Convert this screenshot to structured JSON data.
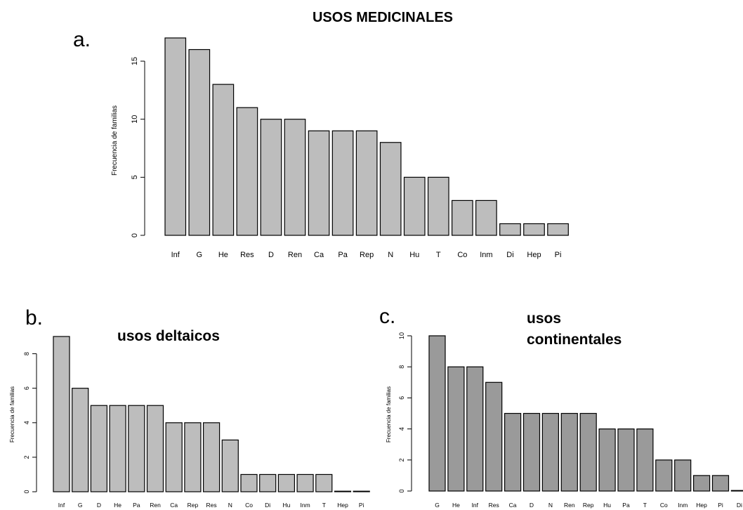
{
  "title": "USOS MEDICINALES",
  "chart_data": [
    {
      "panel": "a.",
      "type": "bar",
      "title": "",
      "ylabel": "Frecuencia de familias",
      "ylim": [
        0,
        17
      ],
      "yticks": [
        "0",
        "5",
        "10",
        "15"
      ],
      "bar_color": "#bdbdbd",
      "categories": [
        "Inf",
        "G",
        "He",
        "Res",
        "D",
        "Ren",
        "Ca",
        "Pa",
        "Rep",
        "N",
        "Hu",
        "T",
        "Co",
        "Inm",
        "Di",
        "Hep",
        "Pi"
      ],
      "values": [
        17,
        16,
        13,
        11,
        10,
        10,
        9,
        9,
        9,
        8,
        5,
        5,
        3,
        3,
        1,
        1,
        1
      ]
    },
    {
      "panel": "b.",
      "type": "bar",
      "title": "usos deltaicos",
      "ylabel": "Frecuencia de familias",
      "ylim": [
        0,
        9
      ],
      "yticks": [
        "0",
        "2",
        "4",
        "6",
        "8"
      ],
      "bar_color": "#bdbdbd",
      "categories": [
        "Inf",
        "G",
        "D",
        "He",
        "Pa",
        "Ren",
        "Ca",
        "Rep",
        "Res",
        "N",
        "Co",
        "Di",
        "Hu",
        "Inm",
        "T",
        "Hep",
        "Pi"
      ],
      "values": [
        9,
        6,
        5,
        5,
        5,
        5,
        4,
        4,
        4,
        3,
        1,
        1,
        1,
        1,
        1,
        0,
        0
      ]
    },
    {
      "panel": "c.",
      "type": "bar",
      "title": "usos continentales",
      "title_lines": [
        "usos",
        "continentales"
      ],
      "ylabel": "Frecuencia de familias",
      "ylim": [
        0,
        10
      ],
      "yticks": [
        "0",
        "2",
        "4",
        "6",
        "8",
        "10"
      ],
      "bar_color": "#9a9a9a",
      "categories": [
        "G",
        "He",
        "Inf",
        "Res",
        "Ca",
        "D",
        "N",
        "Ren",
        "Rep",
        "Hu",
        "Pa",
        "T",
        "Co",
        "Inm",
        "Hep",
        "Pi",
        "Di"
      ],
      "values": [
        10,
        8,
        8,
        7,
        5,
        5,
        5,
        5,
        5,
        4,
        4,
        4,
        2,
        2,
        1,
        1,
        0
      ]
    }
  ]
}
